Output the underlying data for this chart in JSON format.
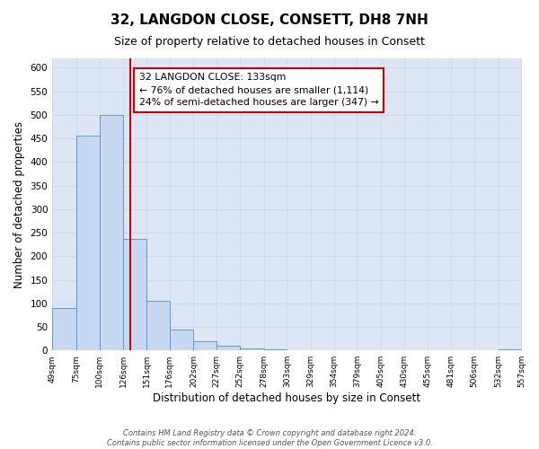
{
  "title": "32, LANGDON CLOSE, CONSETT, DH8 7NH",
  "subtitle": "Size of property relative to detached houses in Consett",
  "xlabel": "Distribution of detached houses by size in Consett",
  "ylabel": "Number of detached properties",
  "bar_edges": [
    49,
    75,
    100,
    126,
    151,
    176,
    202,
    227,
    252,
    278,
    303,
    329,
    354,
    379,
    405,
    430,
    455,
    481,
    506,
    532,
    557
  ],
  "bar_values": [
    90,
    456,
    500,
    237,
    105,
    45,
    20,
    10,
    5,
    2,
    0,
    0,
    0,
    0,
    0,
    0,
    0,
    0,
    0,
    2
  ],
  "bar_color": "#c6d9f0",
  "bar_edge_color": "#5b9bd5",
  "grid_color": "#d0d8e8",
  "background_color": "#dce6f5",
  "property_line_x": 133,
  "property_line_color": "#cc0000",
  "annotation_text": "32 LANGDON CLOSE: 133sqm\n← 76% of detached houses are smaller (1,114)\n24% of semi-detached houses are larger (347) →",
  "annotation_box_color": "#ffffff",
  "annotation_box_edge_color": "#cc0000",
  "ylim": [
    0,
    620
  ],
  "yticks": [
    0,
    50,
    100,
    150,
    200,
    250,
    300,
    350,
    400,
    450,
    500,
    550,
    600
  ],
  "footer_line1": "Contains HM Land Registry data © Crown copyright and database right 2024.",
  "footer_line2": "Contains public sector information licensed under the Open Government Licence v3.0."
}
